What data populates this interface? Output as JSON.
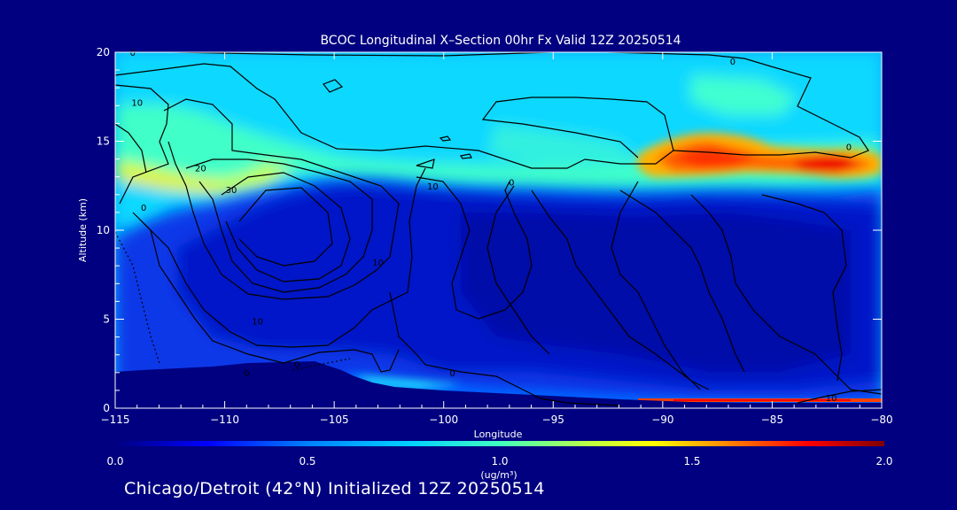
{
  "chart_data": {
    "type": "heatmap",
    "title": "BCOC Longitudinal X–Section 00hr  Fx Valid 12Z 20250514",
    "xlabel": "Longitude",
    "ylabel": "Altitude (km)",
    "xlim": [
      -115,
      -80
    ],
    "ylim": [
      0,
      20
    ],
    "x_ticks": [
      -115,
      -110,
      -105,
      -100,
      -95,
      -90,
      -85,
      -80
    ],
    "x_tick_labels": [
      "−115",
      "−110",
      "−105",
      "−100",
      "−95",
      "−90",
      "−85",
      "−80"
    ],
    "y_ticks": [
      0,
      5,
      10,
      15,
      20
    ],
    "y_tick_labels": [
      "0",
      "5",
      "10",
      "15",
      "20"
    ],
    "colorbar": {
      "min": 0.0,
      "max": 2.0,
      "ticks": [
        0.0,
        0.5,
        1.0,
        1.5,
        2.0
      ],
      "tick_labels": [
        "0.0",
        "0.5",
        "1.0",
        "1.5",
        "2.0"
      ],
      "unit_label": "(ug/m³)",
      "colors": [
        "#000080",
        "#0000ff",
        "#0080ff",
        "#00c8ff",
        "#40ffc0",
        "#c0ff40",
        "#ffff00",
        "#ff8000",
        "#ff0000",
        "#800000"
      ]
    },
    "contour_labels": [
      {
        "value": "0",
        "lon": -114.2,
        "alt": 20.0
      },
      {
        "value": "10",
        "lon": -114.0,
        "alt": 17.2
      },
      {
        "value": "0",
        "lon": -113.7,
        "alt": 11.3
      },
      {
        "value": "20",
        "lon": -111.1,
        "alt": 13.5
      },
      {
        "value": "30",
        "lon": -109.7,
        "alt": 12.3
      },
      {
        "value": "10",
        "lon": -100.5,
        "alt": 12.5
      },
      {
        "value": "0",
        "lon": -96.9,
        "alt": 12.7
      },
      {
        "value": "10",
        "lon": -103.0,
        "alt": 8.2
      },
      {
        "value": "10",
        "lon": -108.5,
        "alt": 4.9
      },
      {
        "value": "0",
        "lon": -106.7,
        "alt": 2.5
      },
      {
        "value": "0",
        "lon": -109.0,
        "alt": 2.0
      },
      {
        "value": "0",
        "lon": -99.6,
        "alt": 2.0
      },
      {
        "value": "0",
        "lon": -86.8,
        "alt": 19.5
      },
      {
        "value": "0",
        "lon": -81.5,
        "alt": 14.7
      },
      {
        "value": "10",
        "lon": -82.3,
        "alt": 0.6
      }
    ],
    "features": [
      {
        "name": "upper-layer band",
        "lon_range": [
          -115,
          -80
        ],
        "alt_range": [
          11,
          17
        ],
        "value": 0.7
      },
      {
        "name": "plume maximum",
        "lon_range": [
          -90,
          -81
        ],
        "alt_range": [
          12.5,
          15
        ],
        "value": 1.6
      },
      {
        "name": "surface layer maximum",
        "lon_range": [
          -90,
          -80
        ],
        "alt_range": [
          0,
          0.5
        ],
        "value": 2.0
      }
    ]
  },
  "footer": "Chicago/Detroit (42°N) Initialized 12Z 20250514",
  "colors": {
    "background": "#000080",
    "text": "#ffffff",
    "contour": "#000000"
  }
}
